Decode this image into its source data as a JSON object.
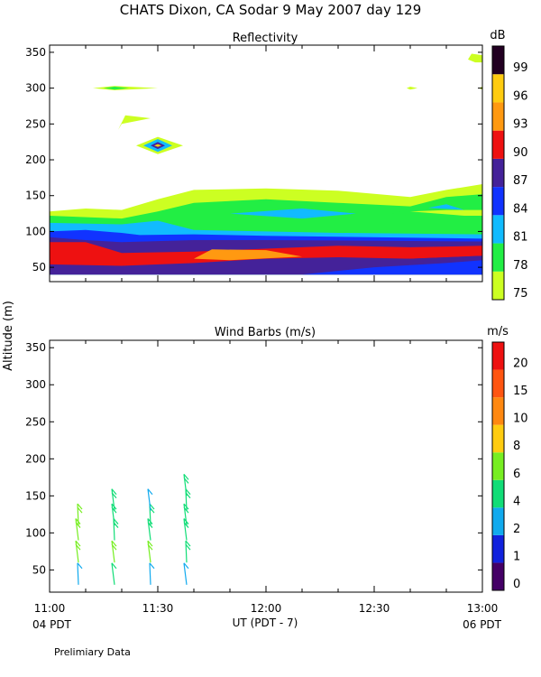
{
  "title": "CHATS Dixon, CA  Sodar   9 May 2007  day 129",
  "y_axis_label": "Altitude (m)",
  "x_axis_label": "UT  (PDT - 7)",
  "start_local_label": "04 PDT",
  "end_local_label": "06 PDT",
  "footer_note": "Prelimiary Data",
  "chart_data": [
    {
      "type": "heatmap",
      "title": "Reflectivity",
      "colorbar_title": "dB",
      "colorbar_ticks": [
        "75",
        "78",
        "81",
        "84",
        "87",
        "90",
        "93",
        "96",
        "99"
      ],
      "colorbar_colors": [
        "#ccff22",
        "#22ee44",
        "#11bbff",
        "#1133ff",
        "#442299",
        "#ee1111",
        "#ff9911",
        "#ffcc11",
        "#220022"
      ],
      "x_ticks": [
        "11:00",
        "11:30",
        "12:00",
        "12:30",
        "13:00"
      ],
      "xlim": [
        "11:00",
        "13:00"
      ],
      "y_ticks": [
        "50",
        "100",
        "150",
        "200",
        "250",
        "300",
        "350"
      ],
      "ylim": [
        30,
        360
      ],
      "shapes": [
        {
          "level": "75",
          "color": "#ccff22",
          "points": [
            [
              "11:00",
              40
            ],
            [
              "11:00",
              128
            ],
            [
              "11:10",
              132
            ],
            [
              "11:20",
              130
            ],
            [
              "11:30",
              145
            ],
            [
              "11:40",
              158
            ],
            [
              "12:00",
              160
            ],
            [
              "12:20",
              157
            ],
            [
              "12:40",
              148
            ],
            [
              "12:50",
              158
            ],
            [
              "13:00",
              166
            ],
            [
              "13:00",
              40
            ]
          ]
        },
        {
          "level": "78",
          "color": "#22ee44",
          "points": [
            [
              "11:00",
              40
            ],
            [
              "11:00",
              122
            ],
            [
              "11:20",
              118
            ],
            [
              "11:30",
              128
            ],
            [
              "11:40",
              140
            ],
            [
              "12:00",
              145
            ],
            [
              "12:20",
              140
            ],
            [
              "12:40",
              135
            ],
            [
              "12:50",
              148
            ],
            [
              "13:00",
              152
            ],
            [
              "13:00",
              40
            ]
          ]
        },
        {
          "level": "81",
          "color": "#11bbff",
          "points": [
            [
              "11:00",
              40
            ],
            [
              "11:00",
              112
            ],
            [
              "11:20",
              110
            ],
            [
              "11:30",
              115
            ],
            [
              "11:40",
              102
            ],
            [
              "12:00",
              100
            ],
            [
              "12:20",
              98
            ],
            [
              "13:00",
              96
            ],
            [
              "13:00",
              40
            ]
          ]
        },
        {
          "level": "84",
          "color": "#1133ff",
          "points": [
            [
              "11:00",
              40
            ],
            [
              "11:00",
              100
            ],
            [
              "11:10",
              102
            ],
            [
              "11:20",
              98
            ],
            [
              "11:25",
              95
            ],
            [
              "11:40",
              96
            ],
            [
              "12:00",
              94
            ],
            [
              "13:00",
              90
            ],
            [
              "13:00",
              40
            ]
          ]
        },
        {
          "level": "87",
          "color": "#442299",
          "points": [
            [
              "11:00",
              40
            ],
            [
              "11:00",
              92
            ],
            [
              "11:10",
              88
            ],
            [
              "11:20",
              85
            ],
            [
              "11:40",
              88
            ],
            [
              "12:00",
              88
            ],
            [
              "13:00",
              86
            ],
            [
              "13:00",
              40
            ]
          ]
        },
        {
          "level": "90",
          "color": "#ee1111",
          "points": [
            [
              "11:00",
              52
            ],
            [
              "11:00",
              85
            ],
            [
              "11:10",
              85
            ],
            [
              "11:20",
              70
            ],
            [
              "11:40",
              72
            ],
            [
              "12:00",
              76
            ],
            [
              "12:20",
              80
            ],
            [
              "12:40",
              78
            ],
            [
              "13:00",
              80
            ],
            [
              "13:00",
              66
            ],
            [
              "12:40",
              62
            ],
            [
              "12:00",
              60
            ],
            [
              "11:40",
              55
            ],
            [
              "11:20",
              50
            ],
            [
              "11:00",
              52
            ]
          ]
        },
        {
          "level": "93",
          "color": "#ff9911",
          "points": [
            [
              "11:40",
              62
            ],
            [
              "11:45",
              75
            ],
            [
              "12:00",
              74
            ],
            [
              "12:10",
              65
            ],
            [
              "11:50",
              60
            ]
          ]
        },
        {
          "level": "87",
          "color": "#442299",
          "points": [
            [
              "11:00",
              40
            ],
            [
              "11:00",
              54
            ],
            [
              "11:20",
              52
            ],
            [
              "11:40",
              56
            ],
            [
              "12:00",
              62
            ],
            [
              "12:20",
              64
            ],
            [
              "12:40",
              62
            ],
            [
              "13:00",
              66
            ],
            [
              "13:00",
              40
            ]
          ]
        },
        {
          "level": "84",
          "color": "#1133ff",
          "points": [
            [
              "12:10",
              40
            ],
            [
              "12:30",
              50
            ],
            [
              "12:50",
              56
            ],
            [
              "13:00",
              60
            ],
            [
              "13:00",
              40
            ]
          ]
        },
        {
          "level": "78",
          "color": "#22ee44",
          "points": [
            [
              "12:35",
              125
            ],
            [
              "12:50",
              115
            ],
            [
              "13:00",
              116
            ],
            [
              "13:00",
              135
            ],
            [
              "12:45",
              138
            ]
          ]
        },
        {
          "level": "75",
          "color": "#ccff22",
          "points": [
            [
              "12:40",
              128
            ],
            [
              "12:55",
              122
            ],
            [
              "13:00",
              122
            ],
            [
              "13:00",
              130
            ],
            [
              "12:50",
              130
            ]
          ]
        },
        {
          "level": "81",
          "color": "#11bbff",
          "points": [
            [
              "11:50",
              125
            ],
            [
              "12:10",
              132
            ],
            [
              "12:25",
              125
            ],
            [
              "12:10",
              118
            ]
          ]
        },
        {
          "level": "81",
          "color": "#11bbff",
          "points": [
            [
              "12:45",
              133
            ],
            [
              "12:55",
              130
            ],
            [
              "12:50",
              138
            ]
          ]
        },
        {
          "level": "75",
          "color": "#ccff22",
          "points": [
            [
              "11:12",
              300
            ],
            [
              "11:18",
              303
            ],
            [
              "11:30",
              300
            ],
            [
              "11:18",
              297
            ]
          ]
        },
        {
          "level": "78",
          "color": "#22ee44",
          "points": [
            [
              "11:15",
              300
            ],
            [
              "11:18",
              302
            ],
            [
              "11:22",
              300
            ],
            [
              "11:18",
              298
            ]
          ]
        },
        {
          "level": "75",
          "color": "#ccff22",
          "points": [
            [
              "11:19",
              242
            ],
            [
              "11:21",
              262
            ],
            [
              "11:28",
              258
            ],
            [
              "11:20",
              250
            ]
          ]
        },
        {
          "level": "75",
          "color": "#ccff22",
          "points": [
            [
              "11:24",
              220
            ],
            [
              "11:30",
              232
            ],
            [
              "11:37",
              220
            ],
            [
              "11:30",
              208
            ]
          ]
        },
        {
          "level": "81",
          "color": "#11bbff",
          "points": [
            [
              "11:26",
              220
            ],
            [
              "11:30",
              229
            ],
            [
              "11:34",
              220
            ],
            [
              "11:30",
              211
            ]
          ]
        },
        {
          "level": "87",
          "color": "#442299",
          "points": [
            [
              "11:28",
              220
            ],
            [
              "11:30",
              225
            ],
            [
              "11:32",
              220
            ],
            [
              "11:30",
              215
            ]
          ]
        },
        {
          "level": "96",
          "color": "#ffcc11",
          "points": [
            [
              "11:29",
              220
            ],
            [
              "11:30",
              222
            ],
            [
              "11:31",
              220
            ],
            [
              "11:30",
              218
            ]
          ]
        },
        {
          "level": "75",
          "color": "#ccff22",
          "points": [
            [
              "12:39",
              300
            ],
            [
              "12:40",
              302
            ],
            [
              "12:42",
              300
            ],
            [
              "12:40",
              298
            ]
          ]
        },
        {
          "level": "75",
          "color": "#ccff22",
          "points": [
            [
              "12:59",
              300
            ],
            [
              "13:00",
              302
            ],
            [
              "13:00",
              298
            ]
          ]
        },
        {
          "level": "75",
          "color": "#ccff22",
          "points": [
            [
              "12:56",
              340
            ],
            [
              "12:57",
              348
            ],
            [
              "13:00",
              346
            ],
            [
              "13:00",
              336
            ],
            [
              "12:58",
              336
            ]
          ]
        }
      ]
    },
    {
      "type": "scatter",
      "title": "Wind Barbs (m/s)",
      "colorbar_title": "m/s",
      "colorbar_ticks": [
        "0",
        "1",
        "2",
        "4",
        "6",
        "8",
        "10",
        "15",
        "20"
      ],
      "colorbar_colors": [
        "#440066",
        "#1122dd",
        "#11aaee",
        "#11dd77",
        "#77ee22",
        "#ffcc11",
        "#ff8811",
        "#ff5511",
        "#ee1111"
      ],
      "x_ticks": [
        "11:00",
        "11:30",
        "12:00",
        "12:30",
        "13:00"
      ],
      "xlim": [
        "11:00",
        "13:00"
      ],
      "y_ticks": [
        "50",
        "100",
        "150",
        "200",
        "250",
        "300",
        "350"
      ],
      "ylim": [
        20,
        360
      ],
      "barbs": [
        {
          "time": "11:08",
          "altitude": 30,
          "speed": 3.0,
          "color": "#11aaee"
        },
        {
          "time": "11:08",
          "altitude": 60,
          "speed": 5.0,
          "color": "#77ee22"
        },
        {
          "time": "11:08",
          "altitude": 90,
          "speed": 5.0,
          "color": "#77ee22"
        },
        {
          "time": "11:08",
          "altitude": 110,
          "speed": 5.0,
          "color": "#77ee22"
        },
        {
          "time": "11:18",
          "altitude": 30,
          "speed": 3.5,
          "color": "#11dd77"
        },
        {
          "time": "11:18",
          "altitude": 60,
          "speed": 5.0,
          "color": "#77ee22"
        },
        {
          "time": "11:18",
          "altitude": 90,
          "speed": 4.5,
          "color": "#11dd77"
        },
        {
          "time": "11:18",
          "altitude": 110,
          "speed": 4.5,
          "color": "#11dd77"
        },
        {
          "time": "11:18",
          "altitude": 130,
          "speed": 4.0,
          "color": "#11dd77"
        },
        {
          "time": "11:28",
          "altitude": 30,
          "speed": 3.0,
          "color": "#11aaee"
        },
        {
          "time": "11:28",
          "altitude": 60,
          "speed": 5.0,
          "color": "#77ee22"
        },
        {
          "time": "11:28",
          "altitude": 90,
          "speed": 4.5,
          "color": "#11dd77"
        },
        {
          "time": "11:28",
          "altitude": 110,
          "speed": 4.5,
          "color": "#11dd77"
        },
        {
          "time": "11:28",
          "altitude": 130,
          "speed": 3.0,
          "color": "#11aaee"
        },
        {
          "time": "11:38",
          "altitude": 30,
          "speed": 2.5,
          "color": "#11aaee"
        },
        {
          "time": "11:38",
          "altitude": 60,
          "speed": 4.5,
          "color": "#11dd77"
        },
        {
          "time": "11:38",
          "altitude": 90,
          "speed": 4.5,
          "color": "#11dd77"
        },
        {
          "time": "11:38",
          "altitude": 110,
          "speed": 4.0,
          "color": "#11dd77"
        },
        {
          "time": "11:38",
          "altitude": 130,
          "speed": 4.0,
          "color": "#11dd77"
        },
        {
          "time": "11:38",
          "altitude": 150,
          "speed": 4.0,
          "color": "#11dd77"
        }
      ]
    }
  ]
}
